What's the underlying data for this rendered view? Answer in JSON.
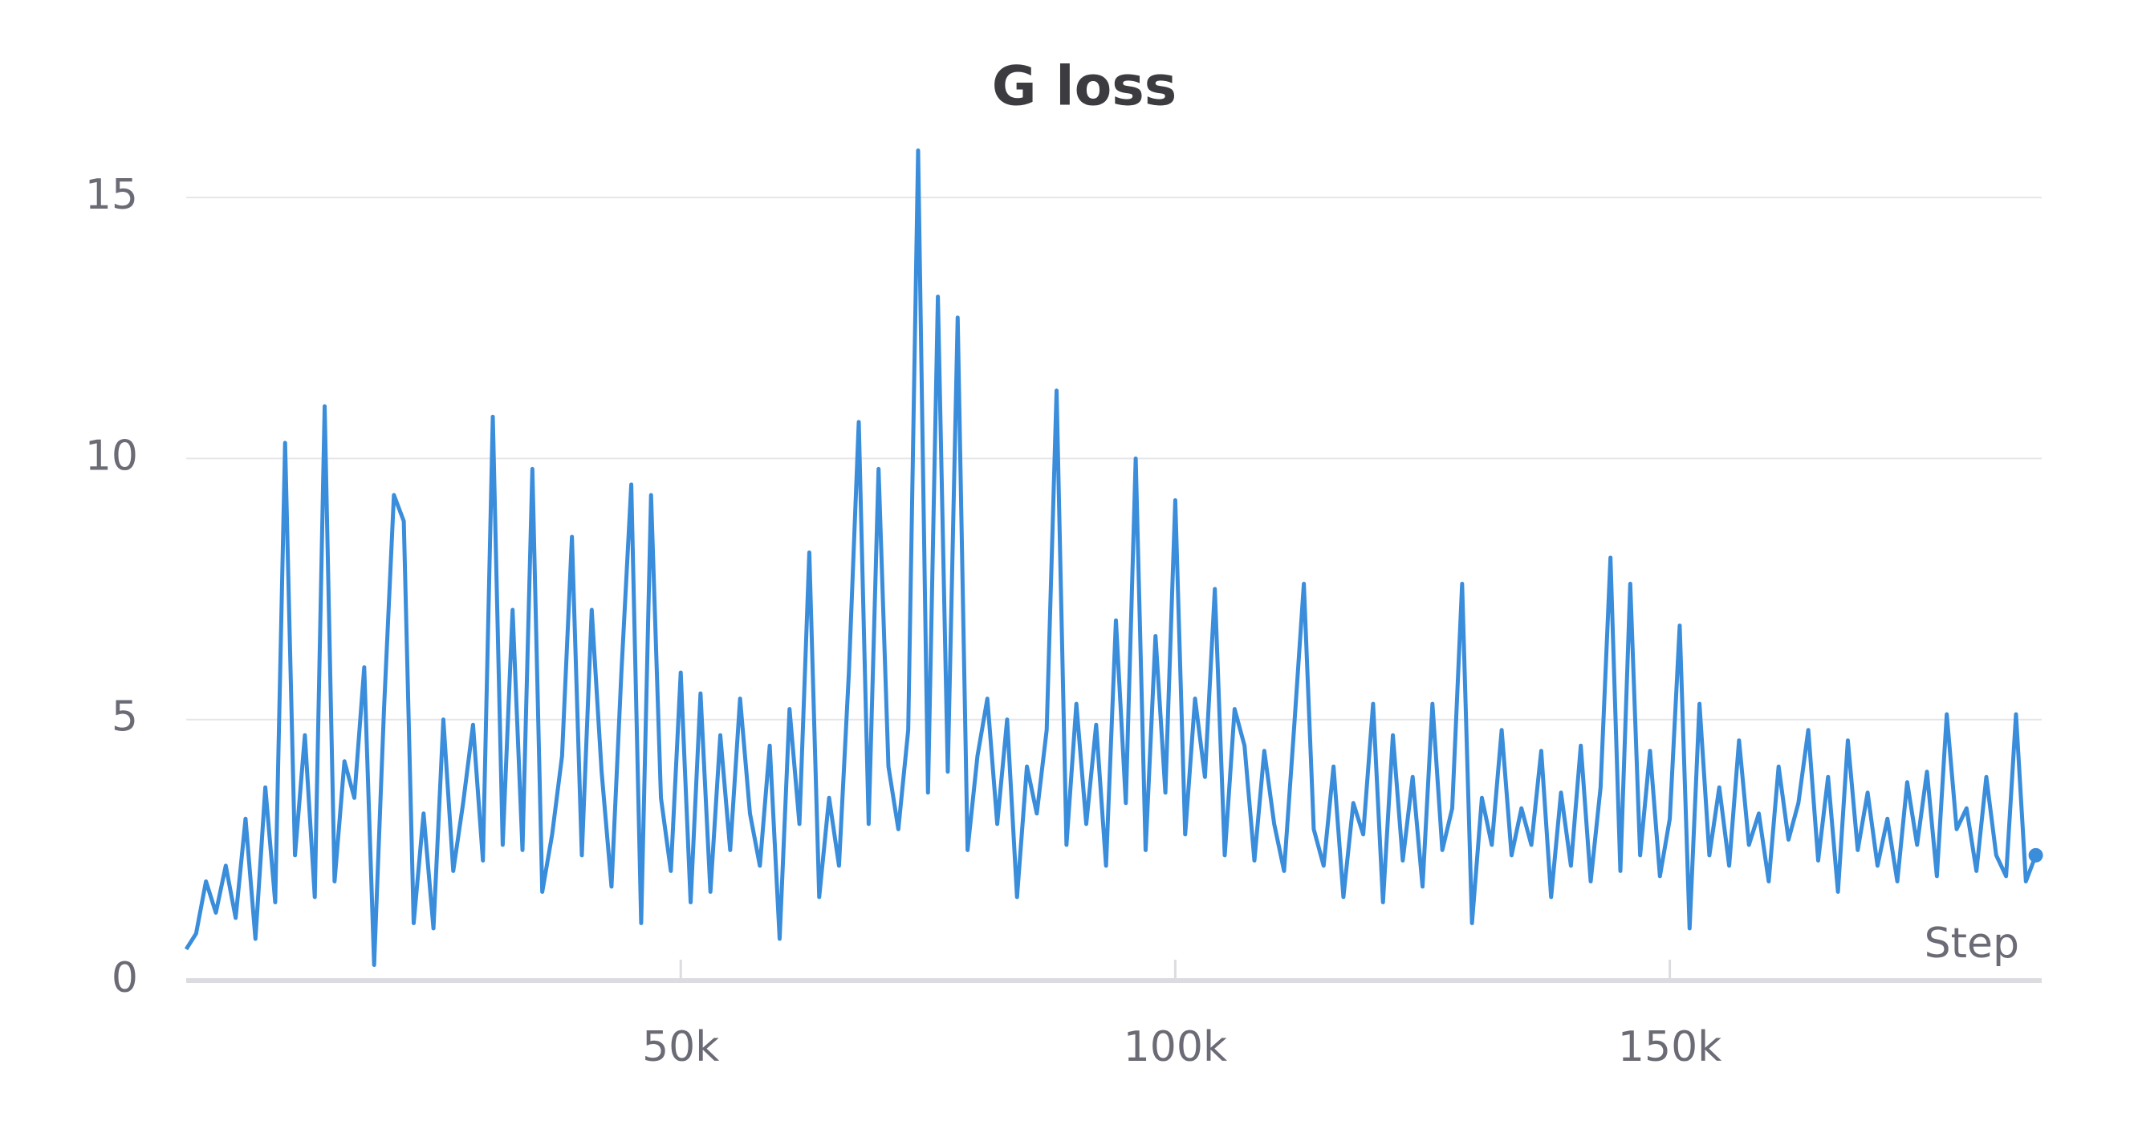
{
  "chart_data": {
    "type": "line",
    "title": "G loss",
    "x_label": "Step",
    "xlim": [
      0,
      187600
    ],
    "ylim": [
      0,
      16
    ],
    "xticks": [
      {
        "value": 50000,
        "label": "50k"
      },
      {
        "value": 100000,
        "label": "100k"
      },
      {
        "value": 150000,
        "label": "150k"
      }
    ],
    "yticks": [
      0,
      5,
      10,
      15
    ],
    "grid": true,
    "x": [
      0,
      1000,
      2000,
      3000,
      4000,
      5000,
      6000,
      7000,
      8000,
      9000,
      10000,
      11000,
      12000,
      13000,
      14000,
      15000,
      16000,
      17000,
      18000,
      19000,
      20000,
      21000,
      22000,
      23000,
      24000,
      25000,
      26000,
      27000,
      28000,
      29000,
      30000,
      31000,
      32000,
      33000,
      34000,
      35000,
      36000,
      37000,
      38000,
      39000,
      40000,
      41000,
      42000,
      43000,
      44000,
      45000,
      46000,
      47000,
      48000,
      49000,
      50000,
      51000,
      52000,
      53000,
      54000,
      55000,
      56000,
      57000,
      58000,
      59000,
      60000,
      61000,
      62000,
      63000,
      64000,
      65000,
      66000,
      67000,
      68000,
      69000,
      70000,
      71000,
      72000,
      73000,
      74000,
      75000,
      76000,
      77000,
      78000,
      79000,
      80000,
      81000,
      82000,
      83000,
      84000,
      85000,
      86000,
      87000,
      88000,
      89000,
      90000,
      91000,
      92000,
      93000,
      94000,
      95000,
      96000,
      97000,
      98000,
      99000,
      100000,
      101000,
      102000,
      103000,
      104000,
      105000,
      106000,
      107000,
      108000,
      109000,
      110000,
      111000,
      112000,
      113000,
      114000,
      115000,
      116000,
      117000,
      118000,
      119000,
      120000,
      121000,
      122000,
      123000,
      124000,
      125000,
      126000,
      127000,
      128000,
      129000,
      130000,
      131000,
      132000,
      133000,
      134000,
      135000,
      136000,
      137000,
      138000,
      139000,
      140000,
      141000,
      142000,
      143000,
      144000,
      145000,
      146000,
      147000,
      148000,
      149000,
      150000,
      151000,
      152000,
      153000,
      154000,
      155000,
      156000,
      157000,
      158000,
      159000,
      160000,
      161000,
      162000,
      163000,
      164000,
      165000,
      166000,
      167000,
      168000,
      169000,
      170000,
      171000,
      172000,
      173000,
      174000,
      175000,
      176000,
      177000,
      178000,
      179000,
      180000,
      181000,
      182000,
      183000,
      184000,
      185000,
      186000,
      187000
    ],
    "series": [
      {
        "name": "G loss",
        "color": "#3a8ddb",
        "values": [
          0.6,
          0.9,
          1.9,
          1.3,
          2.2,
          1.2,
          3.1,
          0.8,
          3.7,
          1.5,
          10.3,
          2.4,
          4.7,
          1.6,
          11.0,
          1.9,
          4.2,
          3.5,
          6.0,
          0.3,
          5.2,
          9.3,
          8.8,
          1.1,
          3.2,
          1.0,
          5.0,
          2.1,
          3.4,
          4.9,
          2.3,
          10.8,
          2.6,
          7.1,
          2.5,
          9.8,
          1.7,
          2.8,
          4.3,
          8.5,
          2.4,
          7.1,
          4.0,
          1.8,
          5.9,
          9.5,
          1.1,
          9.3,
          3.5,
          2.1,
          5.9,
          1.5,
          5.5,
          1.7,
          4.7,
          2.5,
          5.4,
          3.2,
          2.2,
          4.5,
          0.8,
          5.2,
          3.0,
          8.2,
          1.6,
          3.5,
          2.2,
          5.9,
          10.7,
          3.0,
          9.8,
          4.1,
          2.9,
          4.8,
          15.9,
          3.6,
          13.1,
          4.0,
          12.7,
          2.5,
          4.3,
          5.4,
          3.0,
          5.0,
          1.6,
          4.1,
          3.2,
          4.8,
          11.3,
          2.6,
          5.3,
          3.0,
          4.9,
          2.2,
          6.9,
          3.4,
          10.0,
          2.5,
          6.6,
          3.6,
          9.2,
          2.8,
          5.4,
          3.9,
          7.5,
          2.4,
          5.2,
          4.5,
          2.3,
          4.4,
          3.0,
          2.1,
          4.8,
          7.6,
          2.9,
          2.2,
          4.1,
          1.6,
          3.4,
          2.8,
          5.3,
          1.5,
          4.7,
          2.3,
          3.9,
          1.8,
          5.3,
          2.5,
          3.3,
          7.6,
          1.1,
          3.5,
          2.6,
          4.8,
          2.4,
          3.3,
          2.6,
          4.4,
          1.6,
          3.6,
          2.2,
          4.5,
          1.9,
          3.7,
          8.1,
          2.1,
          7.6,
          2.4,
          4.4,
          2.0,
          3.1,
          6.8,
          1.0,
          5.3,
          2.4,
          3.7,
          2.2,
          4.6,
          2.6,
          3.2,
          1.9,
          4.1,
          2.7,
          3.4,
          4.8,
          2.3,
          3.9,
          1.7,
          4.6,
          2.5,
          3.6,
          2.2,
          3.1,
          1.9,
          3.8,
          2.6,
          4.0,
          2.0,
          5.1,
          2.9,
          3.3,
          2.1,
          3.9,
          2.4,
          2.0,
          5.1,
          1.9,
          2.4
        ]
      }
    ]
  }
}
